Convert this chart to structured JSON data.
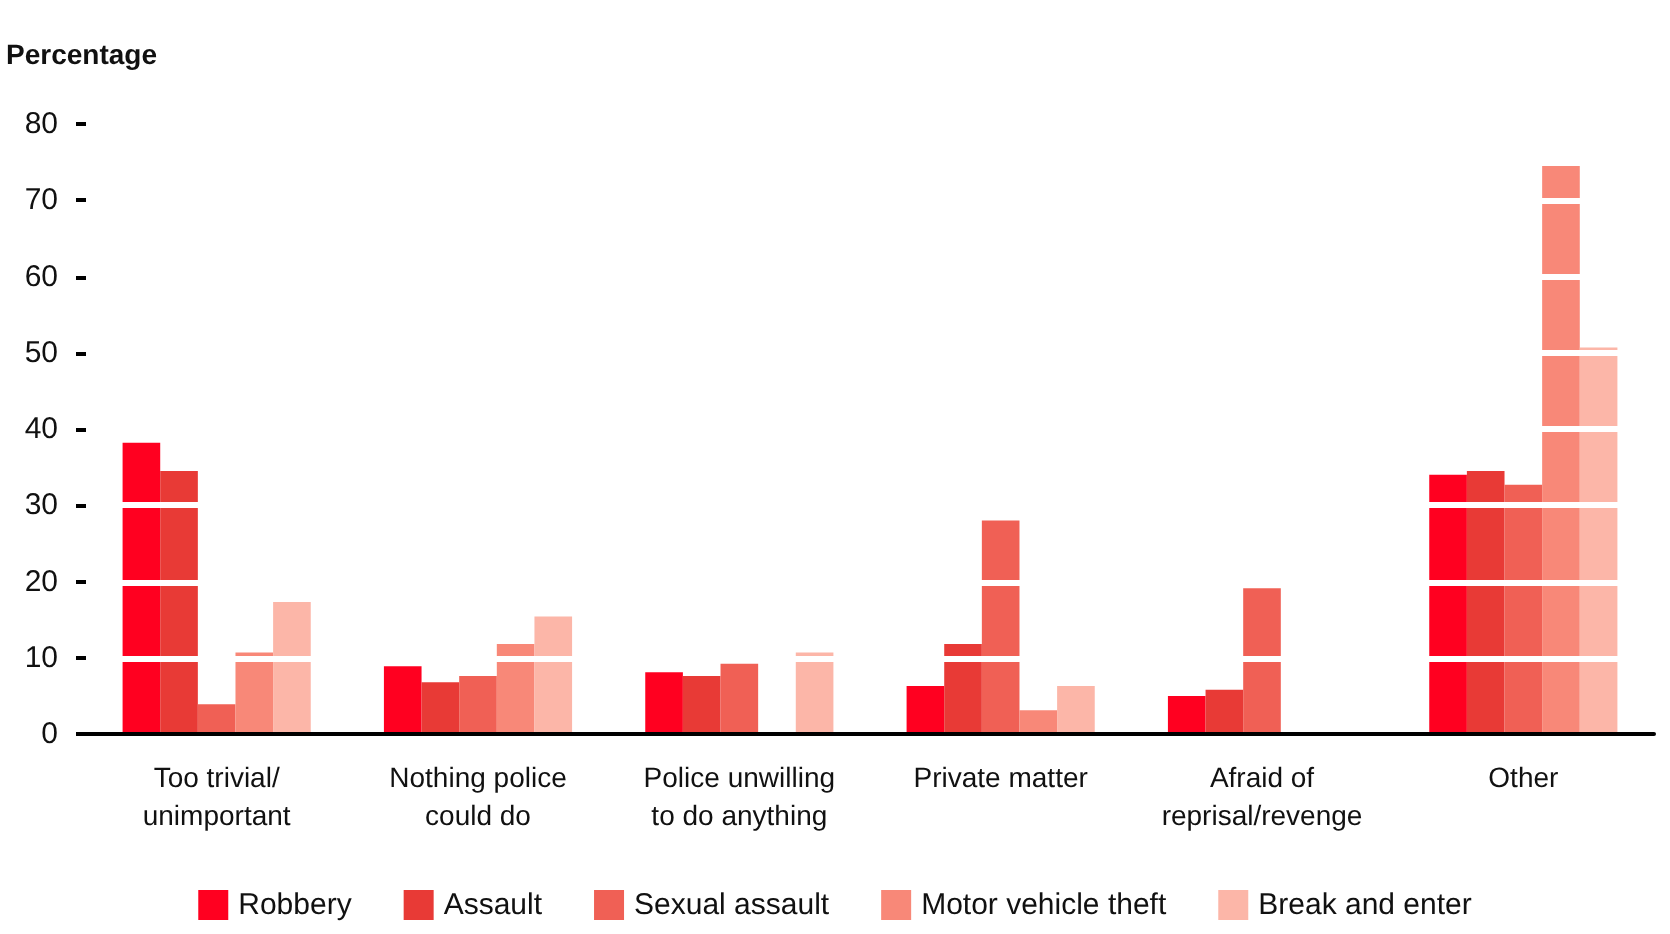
{
  "chart_data": {
    "type": "bar",
    "ylabel": "Percentage",
    "categories": [
      "Too trivial/\nunimportant",
      "Nothing police\ncould do",
      "Police unwilling\nto do anything",
      "Private matter",
      "Afraid of\nreprisal/revenge",
      "Other"
    ],
    "series": [
      {
        "name": "Robbery",
        "color": "#ff0020",
        "values": [
          38.2,
          8.9,
          8.1,
          6.3,
          5.0,
          34.0
        ]
      },
      {
        "name": "Assault",
        "color": "#e83a36",
        "values": [
          34.5,
          6.8,
          7.6,
          11.8,
          5.8,
          34.5
        ]
      },
      {
        "name": "Sexual assault",
        "color": "#f06055",
        "values": [
          3.9,
          7.6,
          9.2,
          28.0,
          19.1,
          32.7
        ]
      },
      {
        "name": "Motor vehicle theft",
        "color": "#f88878",
        "values": [
          10.7,
          11.8,
          null,
          3.1,
          null,
          74.5
        ]
      },
      {
        "name": "Break and enter",
        "color": "#fcb6a8",
        "values": [
          17.3,
          15.4,
          10.7,
          6.3,
          null,
          50.7
        ]
      }
    ],
    "ylim": [
      0,
      80
    ],
    "yticks": [
      0,
      10,
      20,
      30,
      40,
      50,
      60,
      70,
      80
    ],
    "grid": "y",
    "legend": "bottom"
  }
}
